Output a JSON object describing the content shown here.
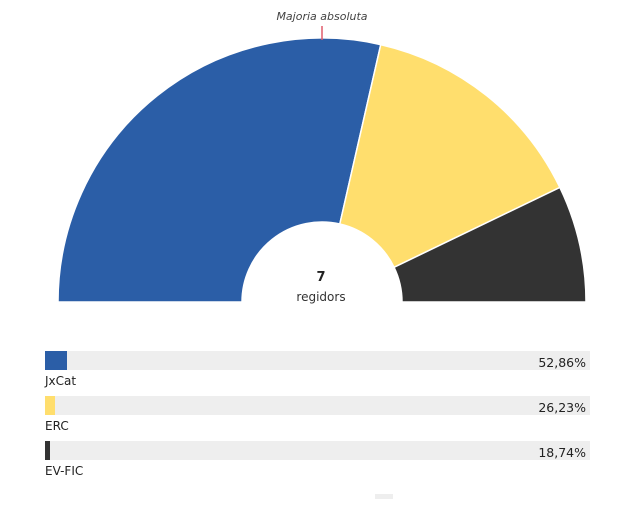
{
  "chart_data": {
    "type": "hemicycle",
    "majority_label": "Majoria absoluta",
    "center_value": "7",
    "center_caption": "regidors",
    "parties": [
      {
        "name": "JxCat",
        "seats": 4,
        "percent": 52.86,
        "percent_label": "52,86%",
        "color": "#2b5ea7"
      },
      {
        "name": "ERC",
        "seats": 2,
        "percent": 26.23,
        "percent_label": "26,23%",
        "color": "#ffde6d"
      },
      {
        "name": "EV-FIC",
        "seats": 1,
        "percent": 18.74,
        "percent_label": "18,74%",
        "color": "#333333"
      }
    ],
    "colors": {
      "majority_marker": "#e05a6b",
      "bar_track": "#eeeeee"
    }
  }
}
